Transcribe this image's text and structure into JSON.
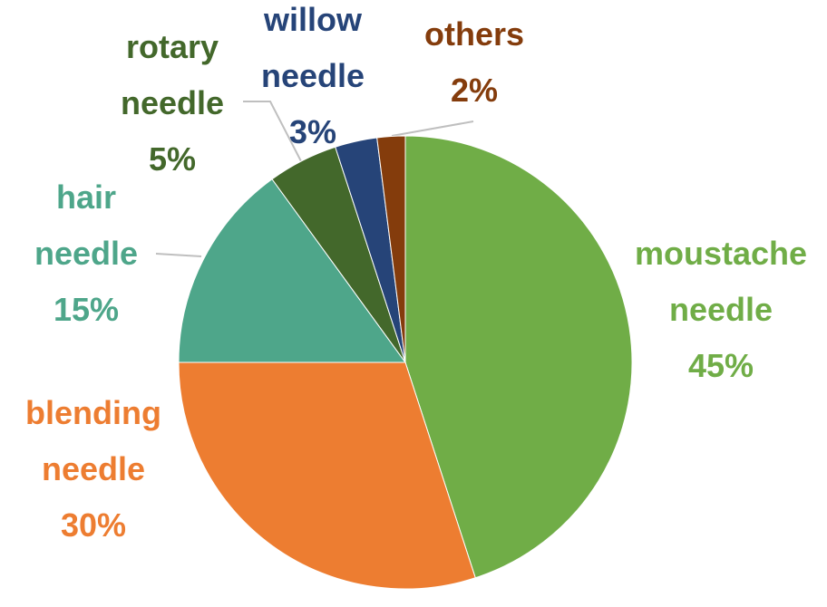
{
  "chart_data": {
    "type": "pie",
    "categories": [
      "moustache needle",
      "blending needle",
      "hair needle",
      "rotary needle",
      "willow needle",
      "others"
    ],
    "values": [
      45,
      30,
      15,
      5,
      3,
      2
    ],
    "value_labels": [
      "45%",
      "30%",
      "15%",
      "5%",
      "3%",
      "2%"
    ],
    "colors": [
      "#70ad47",
      "#ed7d31",
      "#4ea68a",
      "#43682b",
      "#264478",
      "#843c0c"
    ]
  }
}
